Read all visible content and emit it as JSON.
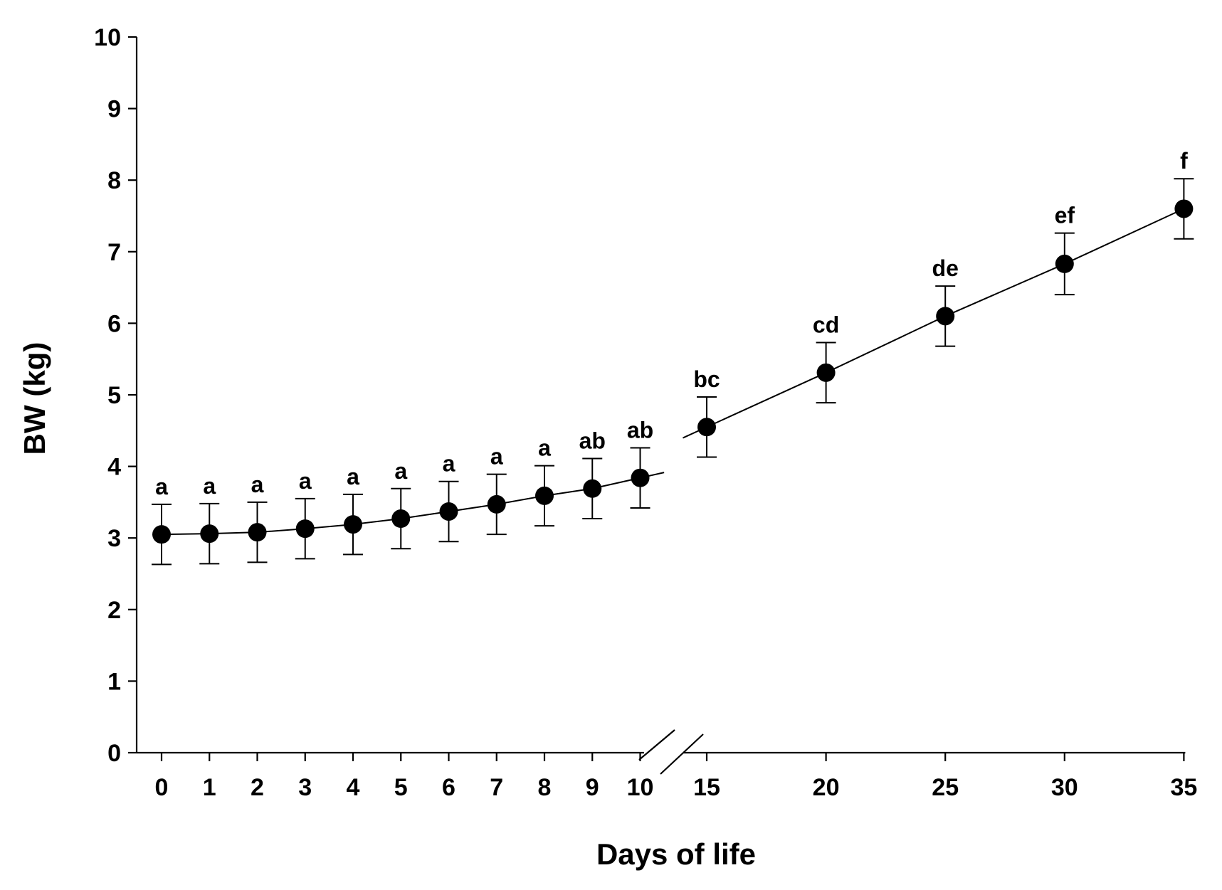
{
  "chart_data": {
    "type": "line",
    "title": "",
    "xlabel": "Days of life",
    "ylabel": "BW (kg)",
    "ylim": [
      0,
      10
    ],
    "yticks": [
      0,
      1,
      2,
      3,
      4,
      5,
      6,
      7,
      8,
      9,
      10
    ],
    "xticks": [
      0,
      1,
      2,
      3,
      4,
      5,
      6,
      7,
      8,
      9,
      10,
      15,
      20,
      25,
      30,
      35
    ],
    "axis_break": "between 10 and 15",
    "grid": false,
    "series": [
      {
        "name": "BW",
        "points": [
          {
            "day": 0,
            "mean": 3.05,
            "err": 0.42,
            "sig": "a"
          },
          {
            "day": 1,
            "mean": 3.06,
            "err": 0.42,
            "sig": "a"
          },
          {
            "day": 2,
            "mean": 3.08,
            "err": 0.42,
            "sig": "a"
          },
          {
            "day": 3,
            "mean": 3.13,
            "err": 0.42,
            "sig": "a"
          },
          {
            "day": 4,
            "mean": 3.19,
            "err": 0.42,
            "sig": "a"
          },
          {
            "day": 5,
            "mean": 3.27,
            "err": 0.42,
            "sig": "a"
          },
          {
            "day": 6,
            "mean": 3.37,
            "err": 0.42,
            "sig": "a"
          },
          {
            "day": 7,
            "mean": 3.47,
            "err": 0.42,
            "sig": "a"
          },
          {
            "day": 8,
            "mean": 3.59,
            "err": 0.42,
            "sig": "a"
          },
          {
            "day": 9,
            "mean": 3.69,
            "err": 0.42,
            "sig": "ab"
          },
          {
            "day": 10,
            "mean": 3.84,
            "err": 0.42,
            "sig": "ab"
          },
          {
            "day": 15,
            "mean": 4.55,
            "err": 0.42,
            "sig": "bc"
          },
          {
            "day": 20,
            "mean": 5.31,
            "err": 0.42,
            "sig": "cd"
          },
          {
            "day": 25,
            "mean": 6.1,
            "err": 0.42,
            "sig": "de"
          },
          {
            "day": 30,
            "mean": 6.83,
            "err": 0.43,
            "sig": "ef"
          },
          {
            "day": 35,
            "mean": 7.6,
            "err": 0.42,
            "sig": "f"
          }
        ]
      }
    ],
    "colors": {
      "line": "#000000",
      "marker": "#000000"
    }
  }
}
